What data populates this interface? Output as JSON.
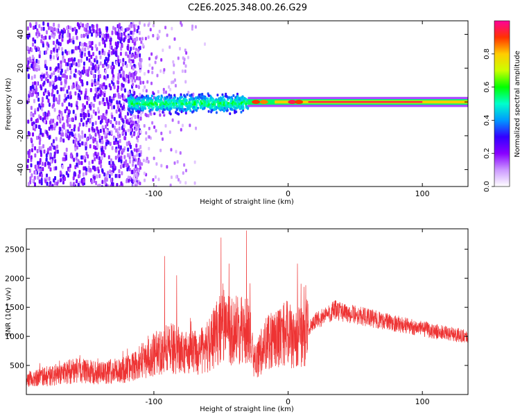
{
  "title": "C2E6.2025.348.00.26.G29",
  "chart_data": [
    {
      "type": "heatmap",
      "xlabel": "Height of straight line (km)",
      "ylabel": "Frequency (Hz)",
      "xlim": [
        -195,
        134
      ],
      "ylim": [
        -50,
        48
      ],
      "xticks": [
        -100,
        0,
        100
      ],
      "yticks": [
        -40,
        -20,
        0,
        20,
        40
      ],
      "colorbar": {
        "label": "Normalized spectral amplitude",
        "range": [
          0,
          1
        ],
        "ticks": [
          "0.0",
          "0.2",
          "0.4",
          "0.6",
          "0.8"
        ],
        "colors": [
          "#ffffff",
          "#cc99ff",
          "#8800ff",
          "#3300ff",
          "#0099ff",
          "#00ffcc",
          "#00ff00",
          "#ccff00",
          "#ffcc00",
          "#ff3300",
          "#ff0099"
        ]
      },
      "regions": [
        {
          "x_range": [
            -195,
            -120
          ],
          "description_value": "broadband noise",
          "amplitude": 0.12
        },
        {
          "x_range": [
            -120,
            -30
          ],
          "center_hz": 0,
          "half_width_hz": 7,
          "amplitude": 0.35
        },
        {
          "x_range": [
            -30,
            134
          ],
          "center_hz": 0,
          "half_width_hz": 3,
          "amplitude": 0.95
        }
      ]
    },
    {
      "type": "line",
      "xlabel": "Height of straight line (km)",
      "ylabel": "SNR (10 * v/v)",
      "xlim": [
        -195,
        134
      ],
      "ylim": [
        0,
        2850
      ],
      "xticks": [
        -100,
        0,
        100
      ],
      "yticks": [
        500,
        1000,
        1500,
        2000,
        2500
      ],
      "color": "#ee3333",
      "envelope": [
        {
          "x": -195,
          "y": 280
        },
        {
          "x": -170,
          "y": 330
        },
        {
          "x": -160,
          "y": 420
        },
        {
          "x": -140,
          "y": 370
        },
        {
          "x": -120,
          "y": 430
        },
        {
          "x": -105,
          "y": 620
        },
        {
          "x": -90,
          "y": 820
        },
        {
          "x": -75,
          "y": 700
        },
        {
          "x": -62,
          "y": 760
        },
        {
          "x": -50,
          "y": 1150
        },
        {
          "x": -40,
          "y": 1100
        },
        {
          "x": -30,
          "y": 1180
        },
        {
          "x": -25,
          "y": 520
        },
        {
          "x": -15,
          "y": 950
        },
        {
          "x": 0,
          "y": 1050
        },
        {
          "x": 5,
          "y": 900
        },
        {
          "x": 20,
          "y": 1260
        },
        {
          "x": 35,
          "y": 1450
        },
        {
          "x": 60,
          "y": 1320
        },
        {
          "x": 85,
          "y": 1200
        },
        {
          "x": 110,
          "y": 1080
        },
        {
          "x": 134,
          "y": 1000
        }
      ],
      "spikes": [
        {
          "x": -92,
          "y": 2380
        },
        {
          "x": -83,
          "y": 2050
        },
        {
          "x": -50,
          "y": 2700
        },
        {
          "x": -44,
          "y": 2250
        },
        {
          "x": -31,
          "y": 2820
        },
        {
          "x": 7,
          "y": 2250
        }
      ]
    }
  ]
}
